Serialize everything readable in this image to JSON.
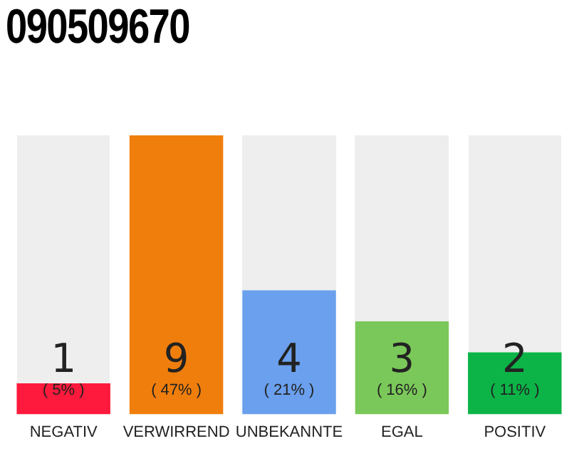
{
  "chart_data": {
    "type": "bar",
    "title": "090509670",
    "categories": [
      "NEGATIV",
      "VERWIRREND",
      "UNBEKANNTE",
      "EGAL",
      "POSITIV"
    ],
    "values": [
      1,
      9,
      4,
      3,
      2
    ],
    "colors": [
      "#fe1a3c",
      "#f07e0c",
      "#6aa0ed",
      "#7bc85a",
      "#0cb447"
    ],
    "ylim": [
      0,
      9
    ],
    "tick_labels": "x",
    "grid": false,
    "legend": false,
    "data_labels": true,
    "annotations": [
      "( 5% )",
      "( 47% )",
      "( 21% )",
      "( 16% )",
      "( 11% )"
    ]
  }
}
